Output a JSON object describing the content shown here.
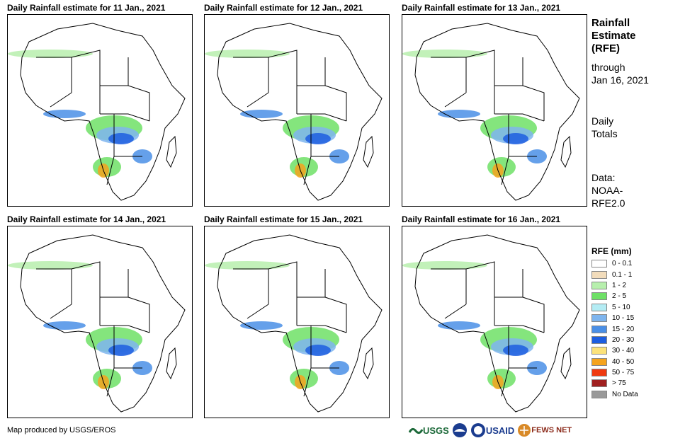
{
  "panels": [
    {
      "title": "Daily Rainfall estimate for 11 Jan., 2021"
    },
    {
      "title": "Daily Rainfall estimate for 12 Jan., 2021"
    },
    {
      "title": "Daily Rainfall estimate for 13 Jan., 2021"
    },
    {
      "title": "Daily Rainfall estimate for 14 Jan., 2021"
    },
    {
      "title": "Daily Rainfall estimate for 15 Jan., 2021"
    },
    {
      "title": "Daily Rainfall estimate for 16 Jan., 2021"
    }
  ],
  "sidebar": {
    "heading_1": "Rainfall",
    "heading_2": "Estimate",
    "heading_3": "(RFE)",
    "through_1": "through",
    "through_2": "Jan 16, 2021",
    "totals_1": "Daily",
    "totals_2": "Totals",
    "data_1": "Data:",
    "data_2": "NOAA-",
    "data_3": "RFE2.0"
  },
  "legend": {
    "title": "RFE (mm)",
    "items": [
      {
        "label": "0 - 0.1",
        "color": "#ffffff"
      },
      {
        "label": "0.1 - 1",
        "color": "#f2dcbb"
      },
      {
        "label": "1 - 2",
        "color": "#b7efad"
      },
      {
        "label": "2 - 5",
        "color": "#6ee066"
      },
      {
        "label": "5 - 10",
        "color": "#b4ecf4"
      },
      {
        "label": "10 - 15",
        "color": "#7fb5ee"
      },
      {
        "label": "15 - 20",
        "color": "#4a8fe6"
      },
      {
        "label": "20 - 30",
        "color": "#1d5ee0"
      },
      {
        "label": "30 - 40",
        "color": "#fbe27a"
      },
      {
        "label": "40 - 50",
        "color": "#f5a31d"
      },
      {
        "label": "50 - 75",
        "color": "#ef3a10"
      },
      {
        "label": "> 75",
        "color": "#a02020"
      },
      {
        "label": "No Data",
        "color": "#999999"
      }
    ]
  },
  "footer": {
    "credit": "Map produced by USGS/EROS",
    "logos": [
      "USGS",
      "NOAA",
      "USAID",
      "FEWS NET"
    ]
  }
}
